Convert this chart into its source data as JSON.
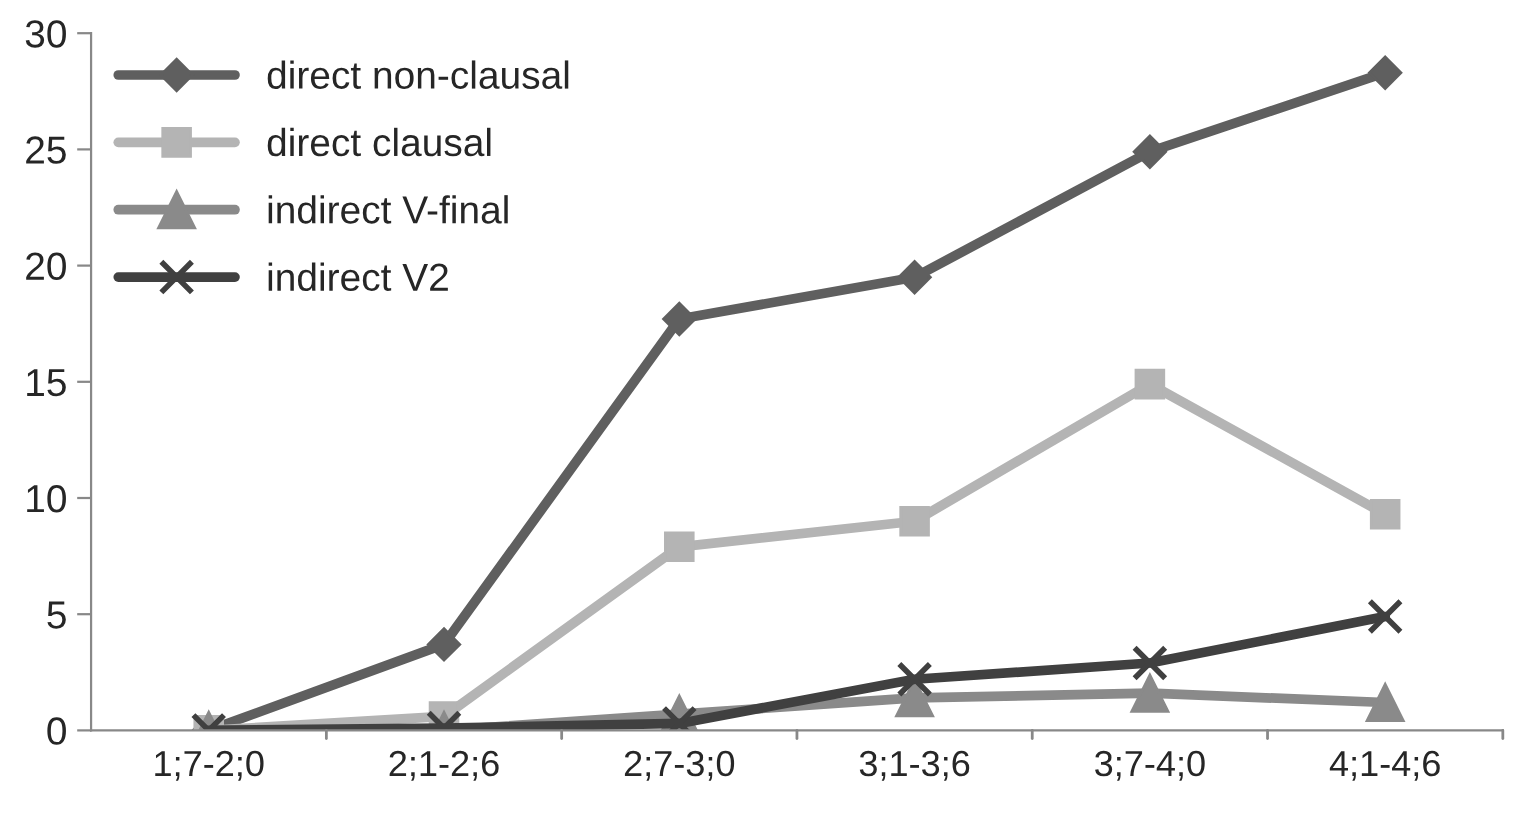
{
  "chart_data": {
    "type": "line",
    "categories": [
      "1;7-2;0",
      "2;1-2;6",
      "2;7-3;0",
      "3;1-3;6",
      "3;7-4;0",
      "4;1-4;6"
    ],
    "series": [
      {
        "name": "direct non-clausal",
        "color": "#5f5f5f",
        "marker": "diamond",
        "values": [
          0,
          3.7,
          17.7,
          19.5,
          24.9,
          28.3
        ]
      },
      {
        "name": "direct clausal",
        "color": "#b4b4b4",
        "marker": "square",
        "values": [
          0,
          0.6,
          7.9,
          9.0,
          14.9,
          9.3
        ]
      },
      {
        "name": "indirect V-final",
        "color": "#8a8a8a",
        "marker": "triangle",
        "values": [
          0,
          0,
          0.7,
          1.4,
          1.6,
          1.2
        ]
      },
      {
        "name": "indirect V2",
        "color": "#404040",
        "marker": "cross",
        "values": [
          0,
          0.1,
          0.3,
          2.2,
          2.9,
          4.9
        ]
      }
    ],
    "ylim": [
      0,
      30
    ],
    "yticks": [
      0,
      5,
      10,
      15,
      20,
      25,
      30
    ],
    "grid": false,
    "legend": "top left",
    "line_style": "solid"
  }
}
